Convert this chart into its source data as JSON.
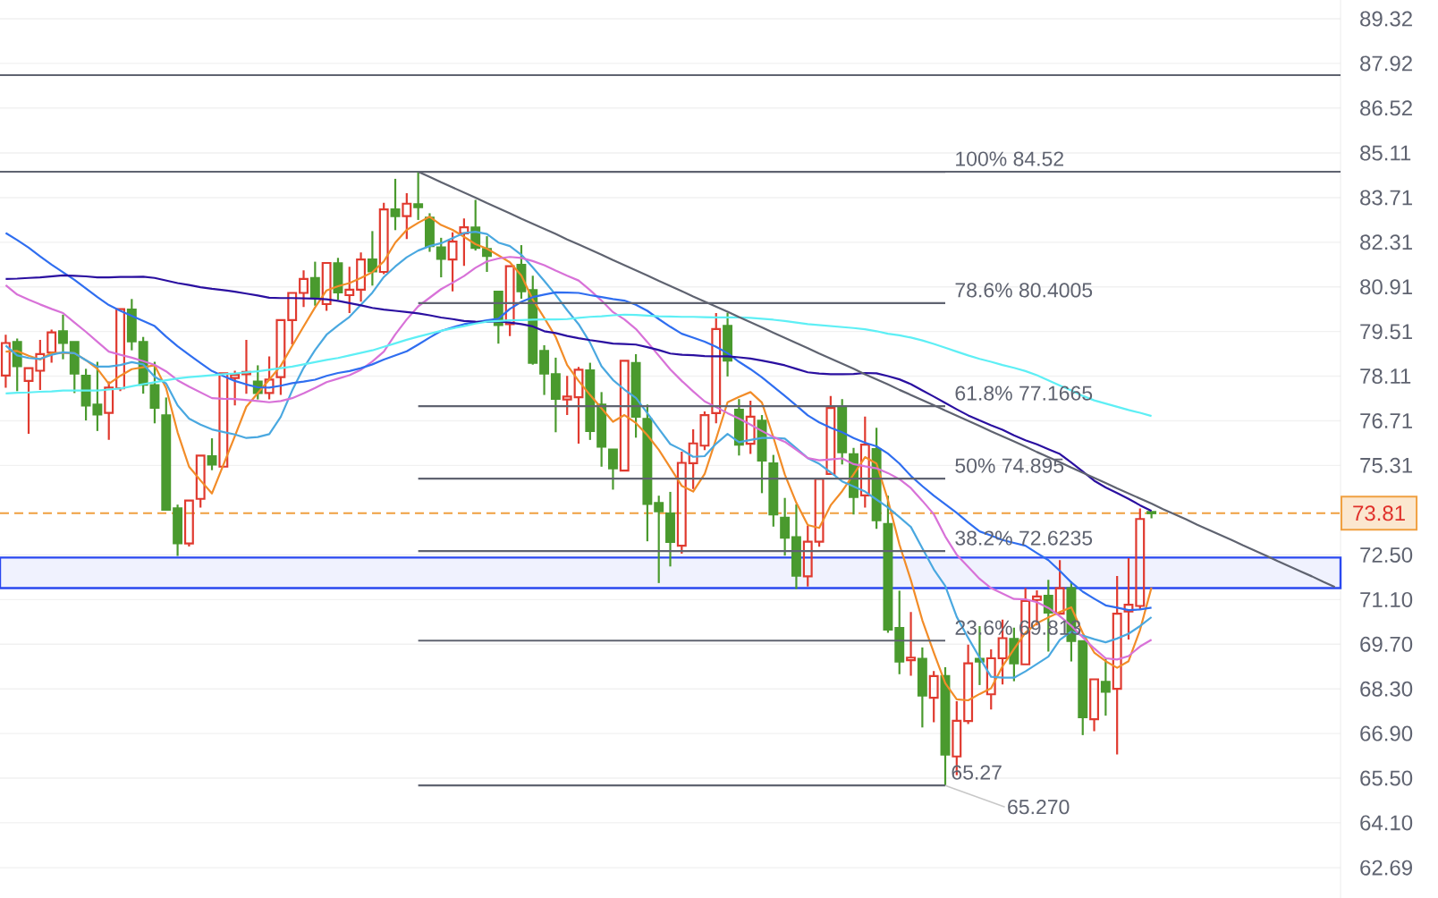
{
  "chart_data": {
    "type": "candlestick",
    "categories": [
      null,
      null,
      null,
      null,
      null,
      null,
      null,
      null,
      null,
      null,
      null,
      null,
      null,
      null,
      null,
      null,
      null,
      null,
      null,
      null,
      null,
      null,
      null,
      null,
      null,
      null,
      null,
      null,
      null,
      null,
      null,
      null,
      null,
      null,
      null,
      null,
      null,
      null,
      null,
      null,
      null,
      null,
      null,
      null,
      null,
      null,
      null,
      null,
      null,
      null,
      null,
      null,
      null,
      null,
      null,
      null,
      null,
      null,
      null,
      null,
      null,
      null,
      null,
      null,
      null,
      null,
      null,
      null,
      null,
      null,
      null,
      null,
      null,
      null,
      null,
      null,
      null,
      null,
      null,
      null,
      null,
      null,
      null,
      null,
      null,
      null,
      null,
      null,
      null,
      null,
      null,
      null,
      null,
      null,
      null,
      null,
      null,
      null,
      null,
      null,
      null,
      null,
      null,
      null,
      null,
      null,
      null,
      null,
      null,
      null,
      null,
      null,
      null,
      null,
      null,
      null,
      null
    ],
    "ohlc": [
      [
        78.13,
        79.41,
        77.75,
        79.15
      ],
      [
        79.18,
        79.29,
        77.64,
        78.42
      ],
      [
        77.96,
        78.39,
        76.3,
        78.36
      ],
      [
        78.28,
        79.25,
        77.68,
        78.8
      ],
      [
        78.85,
        79.57,
        78.53,
        79.48
      ],
      [
        79.52,
        80.04,
        78.64,
        79.15
      ],
      [
        79.18,
        79.25,
        77.58,
        78.19
      ],
      [
        78.12,
        78.34,
        76.72,
        77.19
      ],
      [
        77.22,
        78.56,
        76.39,
        76.91
      ],
      [
        76.96,
        77.94,
        76.11,
        77.75
      ],
      [
        77.73,
        80.25,
        77.64,
        80.21
      ],
      [
        80.2,
        80.53,
        78.92,
        79.2
      ],
      [
        79.18,
        79.34,
        77.56,
        77.84
      ],
      [
        77.83,
        78.56,
        76.63,
        77.12
      ],
      [
        76.88,
        77.44,
        73.9,
        73.92
      ],
      [
        73.96,
        74.08,
        72.47,
        72.87
      ],
      [
        72.86,
        74.21,
        72.77,
        74.21
      ],
      [
        74.26,
        75.69,
        73.99,
        75.62
      ],
      [
        75.6,
        76.16,
        75.16,
        75.34
      ],
      [
        75.27,
        78.22,
        75.25,
        78.2
      ],
      [
        78.05,
        78.28,
        77.19,
        78.15
      ],
      [
        78.17,
        79.25,
        77.56,
        78.24
      ],
      [
        77.94,
        78.45,
        77.38,
        77.58
      ],
      [
        77.58,
        78.73,
        77.38,
        78.0
      ],
      [
        78.08,
        79.9,
        77.52,
        79.87
      ],
      [
        79.87,
        80.74,
        79.11,
        80.72
      ],
      [
        80.72,
        81.43,
        80.28,
        81.16
      ],
      [
        81.19,
        81.7,
        80.32,
        80.56
      ],
      [
        80.37,
        81.7,
        80.16,
        81.66
      ],
      [
        81.65,
        81.82,
        80.51,
        80.74
      ],
      [
        80.65,
        81.54,
        80.09,
        80.82
      ],
      [
        80.82,
        81.99,
        80.45,
        81.77
      ],
      [
        81.77,
        82.66,
        80.95,
        81.4
      ],
      [
        81.38,
        83.55,
        81.31,
        83.34
      ],
      [
        83.34,
        84.3,
        82.69,
        83.13
      ],
      [
        83.13,
        83.85,
        82.41,
        83.52
      ],
      [
        83.5,
        84.52,
        83.01,
        83.41
      ],
      [
        83.08,
        83.22,
        82.01,
        82.19
      ],
      [
        82.15,
        82.45,
        81.21,
        81.79
      ],
      [
        81.77,
        82.62,
        80.77,
        82.33
      ],
      [
        82.59,
        83.06,
        81.57,
        82.78
      ],
      [
        82.77,
        83.64,
        82.05,
        82.13
      ],
      [
        82.1,
        82.5,
        81.38,
        81.88
      ],
      [
        80.76,
        80.81,
        79.13,
        79.71
      ],
      [
        79.74,
        81.58,
        79.37,
        81.56
      ],
      [
        81.6,
        82.22,
        80.54,
        80.77
      ],
      [
        80.81,
        81.26,
        78.47,
        78.53
      ],
      [
        78.9,
        79.08,
        77.52,
        78.19
      ],
      [
        78.17,
        78.69,
        76.35,
        77.4
      ],
      [
        77.38,
        78.12,
        76.89,
        77.47
      ],
      [
        77.45,
        78.4,
        75.99,
        78.31
      ],
      [
        78.29,
        78.53,
        76.11,
        76.39
      ],
      [
        77.22,
        77.61,
        75.27,
        75.9
      ],
      [
        75.81,
        75.88,
        74.55,
        75.22
      ],
      [
        75.15,
        78.62,
        75.11,
        78.59
      ],
      [
        78.52,
        78.8,
        76.18,
        76.84
      ],
      [
        76.77,
        77.22,
        72.93,
        74.1
      ],
      [
        74.13,
        74.36,
        71.62,
        73.87
      ],
      [
        73.8,
        74.48,
        72.14,
        72.91
      ],
      [
        72.79,
        75.74,
        72.54,
        75.39
      ],
      [
        75.38,
        76.44,
        74.57,
        76.0
      ],
      [
        75.93,
        77.0,
        75.79,
        76.89
      ],
      [
        76.95,
        80.09,
        76.63,
        79.59
      ],
      [
        79.69,
        80.1,
        78.1,
        78.6
      ],
      [
        77.06,
        77.39,
        75.62,
        75.96
      ],
      [
        75.99,
        77.34,
        75.67,
        76.84
      ],
      [
        76.71,
        76.89,
        74.44,
        75.46
      ],
      [
        75.37,
        75.64,
        73.39,
        73.77
      ],
      [
        73.67,
        74.29,
        72.48,
        73.04
      ],
      [
        73.06,
        74.09,
        71.43,
        71.85
      ],
      [
        71.83,
        73.42,
        71.51,
        72.92
      ],
      [
        72.92,
        74.97,
        72.76,
        74.89
      ],
      [
        75.04,
        77.49,
        75.02,
        77.11
      ],
      [
        77.11,
        77.39,
        75.34,
        75.72
      ],
      [
        75.66,
        75.86,
        73.77,
        74.32
      ],
      [
        74.37,
        76.84,
        73.99,
        75.96
      ],
      [
        75.82,
        76.49,
        73.32,
        73.59
      ],
      [
        73.47,
        74.36,
        70.06,
        70.16
      ],
      [
        70.21,
        71.38,
        68.76,
        69.16
      ],
      [
        69.2,
        70.71,
        68.71,
        69.28
      ],
      [
        69.24,
        69.6,
        67.09,
        68.09
      ],
      [
        68.02,
        68.86,
        67.25,
        68.7
      ],
      [
        68.7,
        68.98,
        65.27,
        66.24
      ],
      [
        66.18,
        67.91,
        65.59,
        67.3
      ],
      [
        67.29,
        69.69,
        67.2,
        69.1
      ],
      [
        69.24,
        70.27,
        68.42,
        69.16
      ],
      [
        68.13,
        69.54,
        67.65,
        69.26
      ],
      [
        69.26,
        70.47,
        68.44,
        69.89
      ],
      [
        69.87,
        70.22,
        68.54,
        69.1
      ],
      [
        69.07,
        71.46,
        69.05,
        71.06
      ],
      [
        71.09,
        71.39,
        70.29,
        71.2
      ],
      [
        71.22,
        71.72,
        69.47,
        70.69
      ],
      [
        70.66,
        72.34,
        70.64,
        71.46
      ],
      [
        71.46,
        71.67,
        69.16,
        69.8
      ],
      [
        69.8,
        69.82,
        66.85,
        67.41
      ],
      [
        67.35,
        68.63,
        66.97,
        68.6
      ],
      [
        68.52,
        69.24,
        67.46,
        68.21
      ],
      [
        68.3,
        71.84,
        66.24,
        70.66
      ],
      [
        70.73,
        72.4,
        69.85,
        70.94
      ],
      [
        70.9,
        73.96,
        70.78,
        73.63
      ],
      [
        73.85,
        73.92,
        73.65,
        73.81
      ],
      null,
      null,
      null,
      null,
      null,
      null,
      null,
      null,
      null,
      null,
      null,
      null,
      null,
      null,
      null,
      null
    ],
    "series": [
      {
        "type": "line",
        "color": "#f28c28",
        "values": [
          78.88,
          78.9,
          78.75,
          78.63,
          78.84,
          78.84,
          78.83,
          78.61,
          78.34,
          77.87,
          78.12,
          78.33,
          78.39,
          78.45,
          77.73,
          76.35,
          75.27,
          74.84,
          74.43,
          75.33,
          76.23,
          77.15,
          77.58,
          78.0,
          78.43,
          79.06,
          79.67,
          80.27,
          80.8,
          80.93,
          81.03,
          81.19,
          81.37,
          81.71,
          82.3,
          82.7,
          82.92,
          83.11,
          82.85,
          82.7,
          82.48,
          82.25,
          82.11,
          81.9,
          81.68,
          81.27,
          80.51,
          79.94,
          79.34,
          78.46,
          77.96,
          77.52,
          77.1,
          76.68,
          76.89,
          76.64,
          76.26,
          75.8,
          75.24,
          74.67,
          74.49,
          75.04,
          76.14,
          77.29,
          77.46,
          77.61,
          77.28,
          76.19,
          75.02,
          74.14,
          73.44,
          73.35,
          74.06,
          74.5,
          75.03,
          75.57,
          75.37,
          74.22,
          72.83,
          71.71,
          70.45,
          69.44,
          68.48,
          67.97,
          67.94,
          68.14,
          68.32,
          69.01,
          69.55,
          70.06,
          70.36,
          70.54,
          70.71,
          70.86,
          70.05,
          69.44,
          69.17,
          68.96,
          69.17,
          70.15,
          71.48,
          null,
          null,
          null,
          null,
          null,
          null,
          null,
          null,
          null,
          null,
          null,
          null,
          null,
          null,
          null,
          null
        ]
      },
      {
        "type": "line",
        "color": "#4aa8e0",
        "values": [
          79.07,
          78.76,
          78.68,
          78.65,
          78.78,
          78.86,
          78.83,
          78.61,
          78.41,
          78.41,
          78.46,
          78.55,
          78.48,
          78.09,
          77.88,
          77.19,
          76.78,
          76.59,
          76.44,
          76.36,
          76.28,
          76.17,
          76.2,
          76.29,
          76.83,
          77.66,
          78.37,
          78.93,
          79.41,
          79.7,
          79.97,
          80.35,
          80.73,
          81.22,
          81.55,
          81.84,
          82.05,
          82.19,
          82.28,
          82.44,
          82.6,
          82.64,
          82.57,
          82.3,
          82.19,
          81.92,
          81.52,
          81.1,
          80.66,
          80.18,
          79.74,
          79.16,
          78.42,
          77.99,
          77.69,
          77.43,
          76.95,
          76.46,
          75.98,
          75.8,
          75.58,
          75.6,
          75.99,
          76.3,
          76.04,
          76.11,
          76.17,
          76.17,
          76.15,
          75.85,
          75.54,
          75.36,
          75.09,
          74.81,
          74.65,
          74.49,
          74.24,
          73.99,
          73.69,
          73.38,
          72.71,
          72.05,
          71.53,
          70.56,
          69.9,
          69.28,
          68.68,
          68.65,
          68.65,
          68.85,
          69.08,
          69.31,
          69.84,
          70.1,
          69.97,
          69.86,
          69.76,
          69.88,
          70.03,
          70.27,
          70.55,
          null,
          null,
          null,
          null,
          null,
          null,
          null,
          null,
          null,
          null,
          null,
          null,
          null,
          null,
          null,
          null
        ]
      },
      {
        "type": "line",
        "color": "#d872d8",
        "values": [
          80.96,
          80.67,
          80.51,
          80.36,
          80.22,
          80.09,
          79.79,
          79.5,
          79.19,
          78.88,
          78.78,
          78.69,
          78.58,
          78.46,
          78.26,
          77.98,
          77.78,
          77.6,
          77.42,
          77.4,
          77.39,
          77.36,
          77.33,
          77.29,
          77.33,
          77.42,
          77.57,
          77.74,
          77.92,
          78.03,
          78.14,
          78.31,
          78.57,
          78.88,
          79.42,
          79.89,
          80.3,
          80.57,
          80.84,
          81.04,
          81.25,
          81.51,
          81.71,
          81.8,
          81.85,
          81.82,
          81.72,
          81.59,
          81.42,
          81.26,
          81.11,
          80.81,
          80.48,
          80.12,
          79.89,
          79.59,
          79.18,
          78.75,
          78.32,
          77.96,
          77.63,
          77.32,
          77.14,
          76.95,
          76.78,
          76.59,
          76.39,
          76.2,
          76.05,
          75.8,
          75.54,
          75.47,
          75.5,
          75.53,
          75.35,
          75.28,
          75.22,
          75.07,
          74.88,
          74.6,
          74.2,
          73.78,
          73.08,
          72.51,
          72.13,
          71.75,
          71.46,
          71.29,
          71.12,
          71.11,
          71.02,
          70.84,
          70.58,
          70.28,
          69.92,
          69.57,
          69.26,
          69.22,
          69.33,
          69.63,
          69.84,
          null,
          null,
          null,
          null,
          null,
          null,
          null,
          null,
          null,
          null,
          null,
          null,
          null,
          null,
          null,
          null
        ]
      },
      {
        "type": "line",
        "color": "#2f6ef0",
        "values": [
          82.6,
          82.38,
          82.14,
          81.87,
          81.61,
          81.37,
          81.13,
          80.86,
          80.59,
          80.34,
          80.16,
          80.0,
          79.84,
          79.68,
          79.35,
          79.05,
          78.78,
          78.52,
          78.27,
          78.11,
          77.96,
          77.85,
          77.76,
          77.75,
          77.81,
          77.89,
          77.94,
          78.0,
          78.12,
          78.21,
          78.27,
          78.36,
          78.48,
          78.63,
          78.76,
          78.89,
          79.1,
          79.32,
          79.53,
          79.64,
          79.74,
          79.8,
          79.86,
          79.91,
          80.22,
          80.44,
          80.59,
          80.67,
          80.74,
          80.73,
          80.72,
          80.65,
          80.59,
          80.53,
          80.48,
          80.35,
          80.16,
          79.9,
          79.66,
          79.44,
          79.32,
          79.19,
          79.03,
          78.83,
          78.56,
          78.33,
          78.07,
          77.78,
          77.49,
          77.19,
          76.88,
          76.66,
          76.49,
          76.35,
          76.17,
          76.02,
          75.91,
          75.68,
          75.37,
          74.98,
          74.66,
          74.36,
          74.09,
          73.82,
          73.52,
          73.24,
          73.11,
          72.97,
          72.88,
          72.79,
          72.56,
          72.34,
          72.0,
          71.64,
          71.35,
          71.13,
          70.92,
          70.85,
          70.77,
          70.79,
          70.85,
          null,
          null,
          null,
          null,
          null,
          null,
          null,
          null,
          null,
          null,
          null,
          null,
          null,
          null,
          null,
          null
        ]
      },
      {
        "type": "line",
        "color": "#2a0fa0",
        "values": [
          81.16,
          81.17,
          81.19,
          81.21,
          81.24,
          81.27,
          81.26,
          81.24,
          81.21,
          81.21,
          81.22,
          81.22,
          81.23,
          81.19,
          81.11,
          81.03,
          80.97,
          80.9,
          80.85,
          80.81,
          80.76,
          80.7,
          80.64,
          80.57,
          80.56,
          80.56,
          80.55,
          80.54,
          80.52,
          80.47,
          80.4,
          80.33,
          80.25,
          80.2,
          80.16,
          80.12,
          80.08,
          80.02,
          79.95,
          79.9,
          79.84,
          79.82,
          79.81,
          79.83,
          79.79,
          79.74,
          79.67,
          79.52,
          79.46,
          79.37,
          79.3,
          79.24,
          79.19,
          79.13,
          79.12,
          79.1,
          79.02,
          78.93,
          78.82,
          78.78,
          78.77,
          78.74,
          78.73,
          78.73,
          78.7,
          78.66,
          78.6,
          78.53,
          78.45,
          78.34,
          78.23,
          78.19,
          78.17,
          78.17,
          78.18,
          78.21,
          78.2,
          78.11,
          78.01,
          77.86,
          77.66,
          77.47,
          77.27,
          77.07,
          76.88,
          76.72,
          76.57,
          76.43,
          76.25,
          76.1,
          75.97,
          75.82,
          75.67,
          75.4,
          75.12,
          74.83,
          74.62,
          74.44,
          74.26,
          74.06,
          73.88,
          null,
          null,
          null,
          null,
          null,
          null,
          null,
          null,
          null,
          null,
          null,
          null,
          null,
          null,
          null,
          null
        ]
      },
      {
        "type": "line",
        "color": "#5eeff5",
        "values": [
          77.57,
          77.59,
          77.6,
          77.62,
          77.63,
          77.66,
          77.66,
          77.66,
          77.66,
          77.69,
          77.72,
          77.79,
          77.86,
          77.92,
          77.98,
          78.04,
          78.08,
          78.11,
          78.14,
          78.17,
          78.19,
          78.23,
          78.26,
          78.31,
          78.36,
          78.41,
          78.48,
          78.55,
          78.62,
          78.68,
          78.76,
          78.84,
          78.92,
          79.03,
          79.14,
          79.25,
          79.35,
          79.44,
          79.53,
          79.61,
          79.68,
          79.76,
          79.82,
          79.84,
          79.86,
          79.87,
          79.88,
          79.89,
          79.89,
          79.9,
          79.94,
          79.97,
          79.99,
          80.02,
          80.04,
          80.03,
          80.01,
          79.99,
          79.98,
          79.97,
          79.97,
          79.96,
          79.95,
          79.95,
          79.95,
          79.94,
          79.91,
          79.88,
          79.84,
          79.79,
          79.74,
          79.71,
          79.68,
          79.65,
          79.62,
          79.58,
          79.52,
          79.44,
          79.39,
          79.32,
          79.23,
          79.12,
          79.0,
          78.88,
          78.76,
          78.65,
          78.56,
          78.46,
          78.37,
          78.27,
          78.14,
          77.98,
          77.82,
          77.66,
          77.49,
          77.35,
          77.25,
          77.15,
          77.05,
          76.96,
          76.86,
          null,
          null,
          null,
          null,
          null,
          null,
          null,
          null,
          null,
          null,
          null,
          null,
          null,
          null,
          null,
          null
        ]
      },
      {
        "type": "line",
        "name": "100% 84.52",
        "color": "#5f6370",
        "values": [
          null,
          null,
          null,
          null,
          null,
          null,
          null,
          null,
          null,
          null,
          null,
          null,
          null,
          null,
          null,
          null,
          null,
          null,
          null,
          null,
          null,
          null,
          null,
          null,
          null,
          null,
          null,
          null,
          null,
          null,
          null,
          null,
          null,
          null,
          null,
          null,
          84.52,
          84.52,
          84.52,
          84.52,
          84.52,
          84.52,
          84.52,
          84.52,
          84.52,
          84.52,
          84.52,
          84.52,
          84.52,
          84.52,
          84.52,
          84.52,
          84.52,
          84.52,
          84.52,
          84.52,
          84.52,
          84.52,
          84.52,
          84.52,
          84.52,
          84.52,
          84.52,
          84.52,
          84.52,
          84.52,
          84.52,
          84.52,
          84.52,
          84.52,
          84.52,
          84.52,
          84.52,
          84.52,
          84.52,
          84.52,
          84.52,
          84.52,
          84.52,
          84.52,
          84.52,
          84.52,
          84.52,
          null,
          null,
          null,
          null,
          null,
          null,
          null,
          null,
          null,
          null,
          null,
          null,
          null,
          null,
          null,
          null,
          null,
          null,
          null,
          null,
          null,
          null,
          null,
          null,
          null,
          null,
          null,
          null,
          null,
          null,
          null,
          null,
          null,
          null
        ]
      },
      {
        "type": "line",
        "name": "78.6% 80.4005",
        "color": "#5f6370",
        "values": [
          null,
          null,
          null,
          null,
          null,
          null,
          null,
          null,
          null,
          null,
          null,
          null,
          null,
          null,
          null,
          null,
          null,
          null,
          null,
          null,
          null,
          null,
          null,
          null,
          null,
          null,
          null,
          null,
          null,
          null,
          null,
          null,
          null,
          null,
          null,
          null,
          80.4005,
          80.4005,
          80.4005,
          80.4005,
          80.4005,
          80.4005,
          80.4005,
          80.4005,
          80.4005,
          80.4005,
          80.4005,
          80.4005,
          80.4005,
          80.4005,
          80.4005,
          80.4005,
          80.4005,
          80.4005,
          80.4005,
          80.4005,
          80.4005,
          80.4005,
          80.4005,
          80.4005,
          80.4005,
          80.4005,
          80.4005,
          80.4005,
          80.4005,
          80.4005,
          80.4005,
          80.4005,
          80.4005,
          80.4005,
          80.4005,
          80.4005,
          80.4005,
          80.4005,
          80.4005,
          80.4005,
          80.4005,
          80.4005,
          80.4005,
          80.4005,
          80.4005,
          80.4005,
          80.4005,
          null,
          null,
          null,
          null,
          null,
          null,
          null,
          null,
          null,
          null,
          null,
          null,
          null,
          null,
          null,
          null,
          null,
          null,
          null,
          null,
          null,
          null,
          null,
          null,
          null,
          null,
          null,
          null,
          null,
          null,
          null,
          null,
          null,
          null
        ]
      },
      {
        "type": "line",
        "name": "61.8% 77.1665",
        "color": "#5f6370",
        "values": [
          null,
          null,
          null,
          null,
          null,
          null,
          null,
          null,
          null,
          null,
          null,
          null,
          null,
          null,
          null,
          null,
          null,
          null,
          null,
          null,
          null,
          null,
          null,
          null,
          null,
          null,
          null,
          null,
          null,
          null,
          null,
          null,
          null,
          null,
          null,
          null,
          77.1665,
          77.1665,
          77.1665,
          77.1665,
          77.1665,
          77.1665,
          77.1665,
          77.1665,
          77.1665,
          77.1665,
          77.1665,
          77.1665,
          77.1665,
          77.1665,
          77.1665,
          77.1665,
          77.1665,
          77.1665,
          77.1665,
          77.1665,
          77.1665,
          77.1665,
          77.1665,
          77.1665,
          77.1665,
          77.1665,
          77.1665,
          77.1665,
          77.1665,
          77.1665,
          77.1665,
          77.1665,
          77.1665,
          77.1665,
          77.1665,
          77.1665,
          77.1665,
          77.1665,
          77.1665,
          77.1665,
          77.1665,
          77.1665,
          77.1665,
          77.1665,
          77.1665,
          77.1665,
          77.1665,
          null,
          null,
          null,
          null,
          null,
          null,
          null,
          null,
          null,
          null,
          null,
          null,
          null,
          null,
          null,
          null,
          null,
          null,
          null,
          null,
          null,
          null,
          null,
          null,
          null,
          null,
          null,
          null,
          null,
          null,
          null,
          null,
          null,
          null
        ]
      },
      {
        "type": "line",
        "name": "50% 74.895",
        "color": "#5f6370",
        "values": [
          null,
          null,
          null,
          null,
          null,
          null,
          null,
          null,
          null,
          null,
          null,
          null,
          null,
          null,
          null,
          null,
          null,
          null,
          null,
          null,
          null,
          null,
          null,
          null,
          null,
          null,
          null,
          null,
          null,
          null,
          null,
          null,
          null,
          null,
          null,
          null,
          74.895,
          74.895,
          74.895,
          74.895,
          74.895,
          74.895,
          74.895,
          74.895,
          74.895,
          74.895,
          74.895,
          74.895,
          74.895,
          74.895,
          74.895,
          74.895,
          74.895,
          74.895,
          74.895,
          74.895,
          74.895,
          74.895,
          74.895,
          74.895,
          74.895,
          74.895,
          74.895,
          74.895,
          74.895,
          74.895,
          74.895,
          74.895,
          74.895,
          74.895,
          74.895,
          74.895,
          74.895,
          74.895,
          74.895,
          74.895,
          74.895,
          74.895,
          74.895,
          74.895,
          74.895,
          74.895,
          74.895,
          null,
          null,
          null,
          null,
          null,
          null,
          null,
          null,
          null,
          null,
          null,
          null,
          null,
          null,
          null,
          null,
          null,
          null,
          null,
          null,
          null,
          null,
          null,
          null,
          null,
          null,
          null,
          null,
          null,
          null,
          null,
          null,
          null,
          null
        ]
      },
      {
        "type": "line",
        "name": "38.2% 72.6235",
        "color": "#5f6370",
        "values": [
          null,
          null,
          null,
          null,
          null,
          null,
          null,
          null,
          null,
          null,
          null,
          null,
          null,
          null,
          null,
          null,
          null,
          null,
          null,
          null,
          null,
          null,
          null,
          null,
          null,
          null,
          null,
          null,
          null,
          null,
          null,
          null,
          null,
          null,
          null,
          null,
          72.6235,
          72.6235,
          72.6235,
          72.6235,
          72.6235,
          72.6235,
          72.6235,
          72.6235,
          72.6235,
          72.6235,
          72.6235,
          72.6235,
          72.6235,
          72.6235,
          72.6235,
          72.6235,
          72.6235,
          72.6235,
          72.6235,
          72.6235,
          72.6235,
          72.6235,
          72.6235,
          72.6235,
          72.6235,
          72.6235,
          72.6235,
          72.6235,
          72.6235,
          72.6235,
          72.6235,
          72.6235,
          72.6235,
          72.6235,
          72.6235,
          72.6235,
          72.6235,
          72.6235,
          72.6235,
          72.6235,
          72.6235,
          72.6235,
          72.6235,
          72.6235,
          72.6235,
          72.6235,
          72.6235,
          null,
          null,
          null,
          null,
          null,
          null,
          null,
          null,
          null,
          null,
          null,
          null,
          null,
          null,
          null,
          null,
          null,
          null,
          null,
          null,
          null,
          null,
          null,
          null,
          null,
          null,
          null,
          null,
          null,
          null,
          null,
          null,
          null,
          null
        ]
      },
      {
        "type": "line",
        "name": "23.6% 69.813",
        "color": "#5f6370",
        "values": [
          null,
          null,
          null,
          null,
          null,
          null,
          null,
          null,
          null,
          null,
          null,
          null,
          null,
          null,
          null,
          null,
          null,
          null,
          null,
          null,
          null,
          null,
          null,
          null,
          null,
          null,
          null,
          null,
          null,
          null,
          null,
          null,
          null,
          null,
          null,
          null,
          69.813,
          69.813,
          69.813,
          69.813,
          69.813,
          69.813,
          69.813,
          69.813,
          69.813,
          69.813,
          69.813,
          69.813,
          69.813,
          69.813,
          69.813,
          69.813,
          69.813,
          69.813,
          69.813,
          69.813,
          69.813,
          69.813,
          69.813,
          69.813,
          69.813,
          69.813,
          69.813,
          69.813,
          69.813,
          69.813,
          69.813,
          69.813,
          69.813,
          69.813,
          69.813,
          69.813,
          69.813,
          69.813,
          69.813,
          69.813,
          69.813,
          69.813,
          69.813,
          69.813,
          69.813,
          69.813,
          69.813,
          null,
          null,
          null,
          null,
          null,
          null,
          null,
          null,
          null,
          null,
          null,
          null,
          null,
          null,
          null,
          null,
          null,
          null,
          null,
          null,
          null,
          null,
          null,
          null,
          null,
          null,
          null,
          null,
          null,
          null,
          null,
          null,
          null,
          null
        ]
      },
      {
        "type": "line",
        "color": "#5f6370",
        "values": [
          null,
          null,
          null,
          null,
          null,
          null,
          null,
          null,
          null,
          null,
          null,
          null,
          null,
          null,
          null,
          null,
          null,
          null,
          null,
          null,
          null,
          null,
          null,
          null,
          null,
          null,
          null,
          null,
          null,
          null,
          null,
          null,
          null,
          null,
          null,
          null,
          65.27,
          65.27,
          65.27,
          65.27,
          65.27,
          65.27,
          65.27,
          65.27,
          65.27,
          65.27,
          65.27,
          65.27,
          65.27,
          65.27,
          65.27,
          65.27,
          65.27,
          65.27,
          65.27,
          65.27,
          65.27,
          65.27,
          65.27,
          65.27,
          65.27,
          65.27,
          65.27,
          65.27,
          65.27,
          65.27,
          65.27,
          65.27,
          65.27,
          65.27,
          65.27,
          65.27,
          65.27,
          65.27,
          65.27,
          65.27,
          65.27,
          65.27,
          65.27,
          65.27,
          65.27,
          65.27,
          65.27,
          null,
          null,
          null,
          null,
          null,
          null,
          null,
          null,
          null,
          null,
          null,
          null,
          null,
          null,
          null,
          null,
          null,
          null,
          null,
          null,
          null,
          null,
          null,
          null,
          null,
          null,
          null,
          null,
          null,
          null,
          null,
          null,
          null,
          null
        ]
      },
      {
        "type": "line",
        "color": "#5f6370",
        "values": [
          null,
          null,
          null,
          null,
          null,
          null,
          null,
          null,
          null,
          null,
          null,
          null,
          null,
          null,
          null,
          null,
          null,
          null,
          null,
          null,
          null,
          null,
          null,
          null,
          null,
          null,
          null,
          null,
          null,
          null,
          null,
          null,
          null,
          null,
          null,
          null,
          84.52,
          84.36,
          84.19,
          84.03,
          83.87,
          83.71,
          83.54,
          83.38,
          83.22,
          83.05,
          82.89,
          82.73,
          82.57,
          82.4,
          82.24,
          82.08,
          81.92,
          81.75,
          81.59,
          81.43,
          81.27,
          81.1,
          80.94,
          80.78,
          80.61,
          80.45,
          80.29,
          80.13,
          79.96,
          79.8,
          79.64,
          79.47,
          79.31,
          79.15,
          78.99,
          78.82,
          78.66,
          78.5,
          78.34,
          78.17,
          78.01,
          77.85,
          77.68,
          77.52,
          77.36,
          77.2,
          77.03,
          76.87,
          76.71,
          76.55,
          76.38,
          76.22,
          76.06,
          75.9,
          75.73,
          75.57,
          75.41,
          75.24,
          75.08,
          74.92,
          74.76,
          74.59,
          74.43,
          74.27,
          74.11,
          73.94,
          73.78,
          73.62,
          73.45,
          73.29,
          73.13,
          72.97,
          72.8,
          72.64,
          72.48,
          72.31,
          72.15,
          71.99,
          71.83,
          71.66,
          71.5
        ]
      }
    ],
    "ylim": [
      61.74,
      89.91
    ],
    "yticks": [
      89.32,
      87.92,
      86.52,
      85.11,
      83.71,
      82.31,
      80.91,
      79.51,
      78.11,
      76.71,
      75.31,
      {
        "value": 72.5,
        "label": "72.50"
      },
      {
        "value": 71.1,
        "label": "71.10"
      },
      {
        "value": 69.7,
        "label": "69.70"
      },
      {
        "value": 68.3,
        "label": "68.30"
      },
      {
        "value": 66.9,
        "label": "66.90"
      },
      {
        "value": 65.5,
        "label": "65.50"
      },
      {
        "value": 64.1,
        "label": "64.10"
      },
      62.69
    ],
    "ref_lines": [
      {
        "axis": "y",
        "value": 87.55,
        "color": "#5f6370"
      },
      {
        "axis": "y",
        "value": 84.52,
        "color": "#5f6370"
      },
      {
        "axis": "y",
        "value": 73.81,
        "label": "73.81",
        "color": "#f0a040",
        "line_style": "dashed"
      }
    ],
    "bands": [
      {
        "axis": "y",
        "from": 71.46,
        "to": 72.42,
        "color": "#2a48f0"
      }
    ],
    "annotations": [
      "65.27",
      "65.270"
    ],
    "grid": "y",
    "tick_labels": "y"
  }
}
